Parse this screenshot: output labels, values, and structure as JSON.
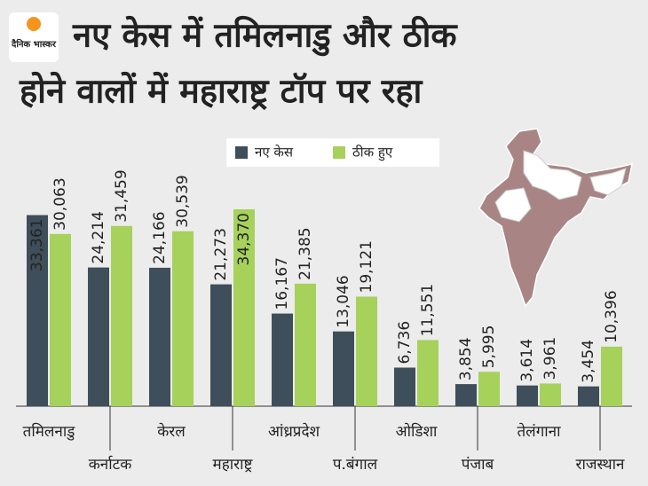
{
  "logo": "दैनिक भास्कर",
  "chart_data": {
    "type": "bar",
    "title": [
      "नए केस में तमिलनाडु और ठीक",
      "होने वालों में महाराष्ट्र टॉप पर रहा"
    ],
    "categories": [
      "तमिलनाडु",
      "कर्नाटक",
      "केरल",
      "महाराष्ट्र",
      "आंध्रप्रदेश",
      "प.बंगाल",
      "ओडिशा",
      "पंजाब",
      "तेलंगाना",
      "राजस्थान"
    ],
    "series": [
      {
        "name": "नए केस",
        "color": "#3e4e5b",
        "values": [
          33361,
          24214,
          24166,
          21273,
          16167,
          13046,
          6736,
          3854,
          3614,
          3454
        ],
        "value_labels": [
          "33,361",
          "24,214",
          "24,166",
          "21,273",
          "16,167",
          "13,046",
          "6,736",
          "3,854",
          "3,614",
          "3,454"
        ]
      },
      {
        "name": "ठीक हुए",
        "color": "#a6d15b",
        "values": [
          30063,
          31459,
          30539,
          34370,
          21385,
          19121,
          11551,
          5995,
          3961,
          10396
        ],
        "value_labels": [
          "30,063",
          "31,459",
          "30,539",
          "34,370",
          "21,385",
          "19,121",
          "11,551",
          "5,995",
          "3,961",
          "10,396"
        ]
      }
    ]
  }
}
